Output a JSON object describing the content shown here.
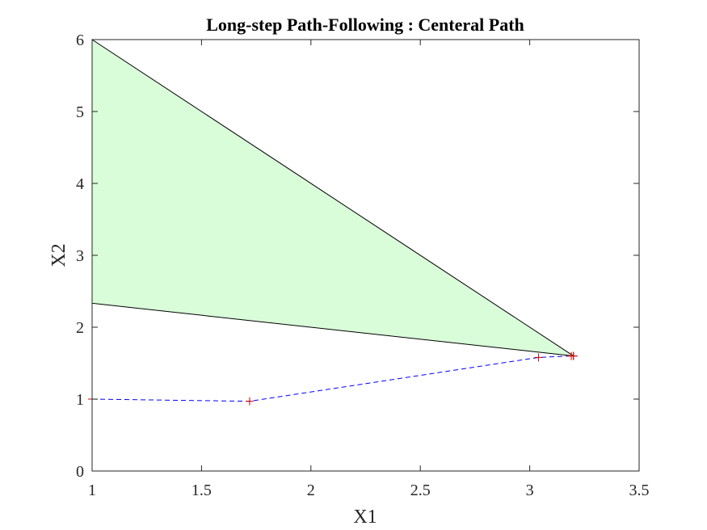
{
  "chart_data": {
    "type": "line",
    "title": "Long-step Path-Following : Centeral Path",
    "xlabel": "X1",
    "ylabel": "X2",
    "xlim": [
      1,
      3.5
    ],
    "ylim": [
      0,
      6
    ],
    "xticks": [
      "1",
      "1.5",
      "2",
      "2.5",
      "3",
      "3.5"
    ],
    "yticks": [
      "0",
      "1",
      "2",
      "3",
      "4",
      "5",
      "6"
    ],
    "grid": false,
    "feasible_region": {
      "fill": "#d9fcd9",
      "edge": "#000000",
      "vertices": [
        [
          1,
          6
        ],
        [
          3.2,
          1.6
        ],
        [
          1,
          2.333
        ]
      ]
    },
    "series": [
      {
        "style": "dashed",
        "color": "#0000ff",
        "marker": "+",
        "marker_color": "#d00000",
        "x": [
          1.0,
          1.72,
          3.04,
          3.19,
          3.2,
          3.2
        ],
        "y": [
          1.0,
          0.97,
          1.58,
          1.6,
          1.6,
          1.6
        ]
      }
    ]
  }
}
